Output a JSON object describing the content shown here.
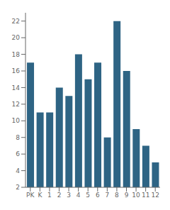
{
  "chart_data": {
    "type": "bar",
    "categories": [
      "PK",
      "K",
      "1",
      "2",
      "3",
      "4",
      "5",
      "6",
      "7",
      "8",
      "9",
      "10",
      "11",
      "12"
    ],
    "values": [
      17,
      11,
      11,
      14,
      13,
      18,
      15,
      17,
      8,
      22,
      16,
      9,
      7,
      5
    ],
    "color": "#2e6484",
    "ylim": [
      2,
      23
    ],
    "yticks": [
      2,
      4,
      6,
      8,
      10,
      12,
      14,
      16,
      18,
      20,
      22
    ],
    "grid": false
  }
}
